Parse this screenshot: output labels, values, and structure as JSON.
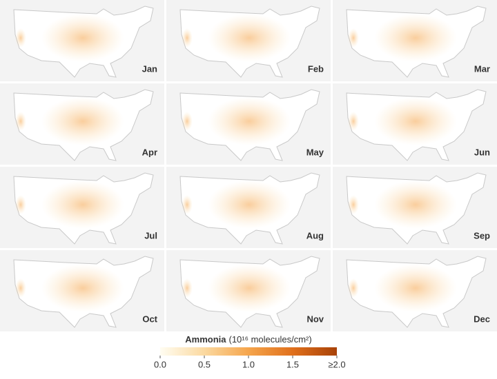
{
  "panels": [
    {
      "label": "Jan"
    },
    {
      "label": "Feb"
    },
    {
      "label": "Mar"
    },
    {
      "label": "Apr"
    },
    {
      "label": "May"
    },
    {
      "label": "Jun"
    },
    {
      "label": "Jul"
    },
    {
      "label": "Aug"
    },
    {
      "label": "Sep"
    },
    {
      "label": "Oct"
    },
    {
      "label": "Nov"
    },
    {
      "label": "Dec"
    }
  ],
  "colorbar": {
    "title": "Ammonia",
    "units": "(10¹⁶ molecules/cm²)",
    "range": [
      0,
      2
    ],
    "ticks": [
      {
        "value": 0,
        "label": "0.0"
      },
      {
        "value": 0.5,
        "label": "0.5"
      },
      {
        "value": 1,
        "label": "1.0"
      },
      {
        "value": 1.5,
        "label": "1.5"
      },
      {
        "value": 2,
        "label": "≥2.0"
      }
    ],
    "colors": [
      "#fffdf2",
      "#fbd9a0",
      "#f5a54c",
      "#e0701c",
      "#a84208"
    ]
  }
}
